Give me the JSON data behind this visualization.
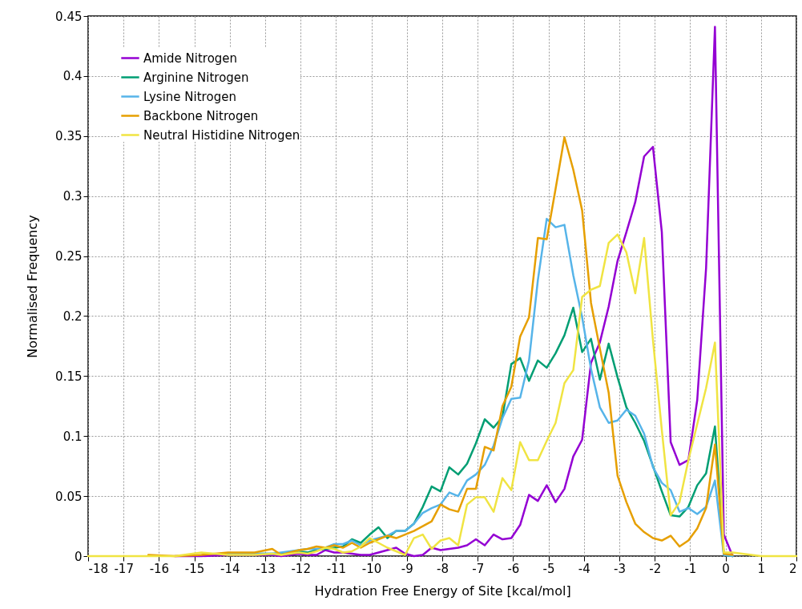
{
  "chart_data": {
    "type": "line",
    "xlabel": "Hydration Free Energy of Site [kcal/mol]",
    "ylabel": "Normalised Frequency",
    "x": [
      -18,
      -17,
      -16.3,
      -15.55,
      -14.8,
      -14.05,
      -13.3,
      -12.8,
      -12.55,
      -12.3,
      -12.05,
      -11.8,
      -11.55,
      -11.3,
      -11.05,
      -10.8,
      -10.55,
      -10.3,
      -10.05,
      -9.8,
      -9.55,
      -9.3,
      -9.05,
      -8.8,
      -8.55,
      -8.3,
      -8.05,
      -7.8,
      -7.55,
      -7.3,
      -7.05,
      -6.8,
      -6.55,
      -6.3,
      -6.05,
      -5.8,
      -5.55,
      -5.3,
      -5.05,
      -4.8,
      -4.55,
      -4.3,
      -4.05,
      -3.8,
      -3.55,
      -3.3,
      -3.05,
      -2.8,
      -2.55,
      -2.3,
      -2.05,
      -1.8,
      -1.55,
      -1.3,
      -1.05,
      -0.8,
      -0.55,
      -0.3,
      -0.05,
      0.2,
      1,
      2
    ],
    "series": [
      {
        "name": "Amide Nitrogen",
        "color": "#9400d3",
        "values": [
          null,
          null,
          null,
          0,
          0,
          0.001,
          0.001,
          0.001,
          0,
          0.001,
          0.002,
          0.001,
          0.001,
          0.005,
          0.003,
          0.003,
          0.002,
          0.001,
          0.001,
          0.003,
          0.005,
          0.007,
          0.002,
          0,
          0.001,
          0.007,
          0.005,
          0.006,
          0.007,
          0.009,
          0.014,
          0.009,
          0.018,
          0.014,
          0.015,
          0.026,
          0.051,
          0.046,
          0.059,
          0.045,
          0.056,
          0.083,
          0.097,
          0.161,
          0.178,
          0.208,
          0.246,
          0.27,
          0.295,
          0.333,
          0.341,
          0.27,
          0.095,
          0.076,
          0.08,
          0.13,
          0.24,
          0.441,
          0.018,
          0,
          null,
          null
        ]
      },
      {
        "name": "Arginine Nitrogen",
        "color": "#009e73",
        "values": [
          null,
          null,
          null,
          null,
          null,
          0.002,
          0.002,
          0.002,
          0.002,
          0.003,
          0.004,
          0.003,
          0.005,
          0.006,
          0.007,
          0.008,
          0.014,
          0.011,
          0.018,
          0.024,
          0.015,
          0.021,
          0.021,
          0.027,
          0.041,
          0.058,
          0.054,
          0.074,
          0.068,
          0.077,
          0.094,
          0.114,
          0.107,
          0.116,
          0.16,
          0.165,
          0.146,
          0.163,
          0.157,
          0.169,
          0.184,
          0.207,
          0.17,
          0.181,
          0.147,
          0.177,
          0.149,
          0.124,
          0.111,
          0.096,
          0.075,
          0.054,
          0.034,
          0.033,
          0.041,
          0.059,
          0.069,
          0.108,
          0.001,
          0,
          null,
          null
        ]
      },
      {
        "name": "Lysine Nitrogen",
        "color": "#56b4e9",
        "values": [
          null,
          null,
          null,
          null,
          null,
          0.002,
          0.002,
          0.002,
          0.003,
          0.004,
          0.005,
          0.006,
          0.006,
          0.007,
          0.01,
          0.01,
          0.013,
          0.009,
          0.013,
          0.015,
          0.017,
          0.021,
          0.021,
          0.027,
          0.036,
          0.04,
          0.043,
          0.053,
          0.05,
          0.063,
          0.068,
          0.076,
          0.092,
          0.115,
          0.131,
          0.132,
          0.163,
          0.23,
          0.281,
          0.274,
          0.276,
          0.234,
          0.199,
          0.156,
          0.124,
          0.111,
          0.113,
          0.122,
          0.117,
          0.102,
          0.074,
          0.061,
          0.055,
          0.037,
          0.04,
          0.035,
          0.041,
          0.063,
          0.001,
          0,
          null,
          null
        ]
      },
      {
        "name": "Backbone Nitrogen",
        "color": "#e69f00",
        "values": [
          null,
          null,
          0.001,
          0,
          0.001,
          0.003,
          0.003,
          0.006,
          0.001,
          0.003,
          0.005,
          0.006,
          0.008,
          0.007,
          0.009,
          0.007,
          0.011,
          0.007,
          0.011,
          0.014,
          0.017,
          0.015,
          0.018,
          0.021,
          0.025,
          0.029,
          0.043,
          0.039,
          0.037,
          0.056,
          0.056,
          0.091,
          0.088,
          0.125,
          0.141,
          0.183,
          0.199,
          0.265,
          0.264,
          0.306,
          0.349,
          0.322,
          0.288,
          0.211,
          0.173,
          0.136,
          0.067,
          0.045,
          0.027,
          0.02,
          0.015,
          0.013,
          0.017,
          0.008,
          0.013,
          0.023,
          0.04,
          0.093,
          0.002,
          0.001,
          null,
          null
        ]
      },
      {
        "name": "Neutral Histidine Nitrogen",
        "color": "#f0e442",
        "values": [
          0,
          0,
          0,
          0,
          0.003,
          0.001,
          0.001,
          0.002,
          0.001,
          0.002,
          0.003,
          0.002,
          0.004,
          0.007,
          0.006,
          0.003,
          0.004,
          0.008,
          0.015,
          0.011,
          0.007,
          0.004,
          0.001,
          0.015,
          0.018,
          0.006,
          0.013,
          0.015,
          0.009,
          0.043,
          0.049,
          0.049,
          0.037,
          0.065,
          0.055,
          0.095,
          0.08,
          0.08,
          0.096,
          0.111,
          0.144,
          0.155,
          0.216,
          0.222,
          0.225,
          0.261,
          0.268,
          0.253,
          0.219,
          0.265,
          0.18,
          0.105,
          0.034,
          0.045,
          0.08,
          0.11,
          0.14,
          0.178,
          0.003,
          0.003,
          0,
          0
        ]
      }
    ],
    "xlim": [
      -18,
      2
    ],
    "xticks": [
      -18,
      -17,
      -16,
      -15,
      -14,
      -13,
      -12,
      -11,
      -10,
      -9,
      -8,
      -7,
      -6,
      -5,
      -4,
      -3,
      -2,
      -1,
      0,
      1,
      2
    ],
    "ylim": [
      0,
      0.45
    ],
    "yticks": [
      0,
      0.05,
      0.1,
      0.15,
      0.2,
      0.25,
      0.3,
      0.35,
      0.4,
      0.45
    ],
    "grid": true,
    "legend": "top left"
  }
}
